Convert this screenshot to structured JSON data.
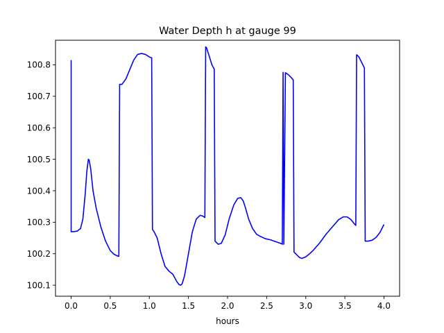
{
  "chart_data": {
    "type": "line",
    "title": "Water Depth h at gauge 99",
    "xlabel": "hours",
    "ylabel": "",
    "xlim": [
      -0.2,
      4.2
    ],
    "ylim": [
      100.065,
      100.878
    ],
    "xticks": [
      0.0,
      0.5,
      1.0,
      1.5,
      2.0,
      2.5,
      3.0,
      3.5,
      4.0
    ],
    "xtick_labels": [
      "0.0",
      "0.5",
      "1.0",
      "1.5",
      "2.0",
      "2.5",
      "3.0",
      "3.5",
      "4.0"
    ],
    "yticks": [
      100.1,
      100.2,
      100.3,
      100.4,
      100.5,
      100.6,
      100.7,
      100.8
    ],
    "ytick_labels": [
      "100.1",
      "100.2",
      "100.3",
      "100.4",
      "100.5",
      "100.6",
      "100.7",
      "100.8"
    ],
    "grid": false,
    "legend": "none",
    "series": [
      {
        "color": "#0000ff",
        "x": [
          0.0,
          0.0,
          0.03,
          0.08,
          0.12,
          0.15,
          0.18,
          0.2,
          0.22,
          0.23,
          0.25,
          0.28,
          0.32,
          0.38,
          0.44,
          0.5,
          0.55,
          0.6,
          0.61,
          0.62,
          0.65,
          0.7,
          0.75,
          0.8,
          0.85,
          0.9,
          0.95,
          1.0,
          1.03,
          1.04,
          1.06,
          1.1,
          1.15,
          1.2,
          1.25,
          1.3,
          1.35,
          1.38,
          1.4,
          1.42,
          1.45,
          1.5,
          1.55,
          1.6,
          1.65,
          1.68,
          1.71,
          1.72,
          1.73,
          1.76,
          1.8,
          1.83,
          1.84,
          1.88,
          1.92,
          1.97,
          2.02,
          2.08,
          2.13,
          2.17,
          2.2,
          2.23,
          2.27,
          2.32,
          2.37,
          2.42,
          2.48,
          2.55,
          2.62,
          2.69,
          2.7,
          2.71,
          2.72,
          2.74,
          2.78,
          2.82,
          2.84,
          2.85,
          2.88,
          2.92,
          2.95,
          3.0,
          3.05,
          3.1,
          3.18,
          3.26,
          3.34,
          3.42,
          3.48,
          3.53,
          3.58,
          3.62,
          3.64,
          3.65,
          3.68,
          3.72,
          3.75,
          3.76,
          3.8,
          3.85,
          3.9,
          3.95,
          4.0
        ],
        "y": [
          100.815,
          100.27,
          100.27,
          100.272,
          100.28,
          100.31,
          100.39,
          100.46,
          100.5,
          100.498,
          100.47,
          100.4,
          100.345,
          100.285,
          100.24,
          100.21,
          100.198,
          100.192,
          100.192,
          100.738,
          100.738,
          100.755,
          100.785,
          100.815,
          100.833,
          100.836,
          100.833,
          100.825,
          100.822,
          100.277,
          100.27,
          100.25,
          100.2,
          100.16,
          100.145,
          100.135,
          100.112,
          100.102,
          100.1,
          100.105,
          100.13,
          100.2,
          100.27,
          100.31,
          100.322,
          100.32,
          100.315,
          100.857,
          100.855,
          100.832,
          100.8,
          100.786,
          100.24,
          100.23,
          100.233,
          100.26,
          100.31,
          100.355,
          100.376,
          100.378,
          100.368,
          100.345,
          100.31,
          100.28,
          100.262,
          100.255,
          100.248,
          100.244,
          100.238,
          100.232,
          100.23,
          100.776,
          100.23,
          100.775,
          100.768,
          100.758,
          100.752,
          100.205,
          100.198,
          100.188,
          100.185,
          100.19,
          100.2,
          100.212,
          100.235,
          100.262,
          100.285,
          100.308,
          100.317,
          100.317,
          100.308,
          100.295,
          100.29,
          100.832,
          100.825,
          100.805,
          100.79,
          100.24,
          100.24,
          100.243,
          100.252,
          100.268,
          100.293
        ]
      }
    ]
  }
}
